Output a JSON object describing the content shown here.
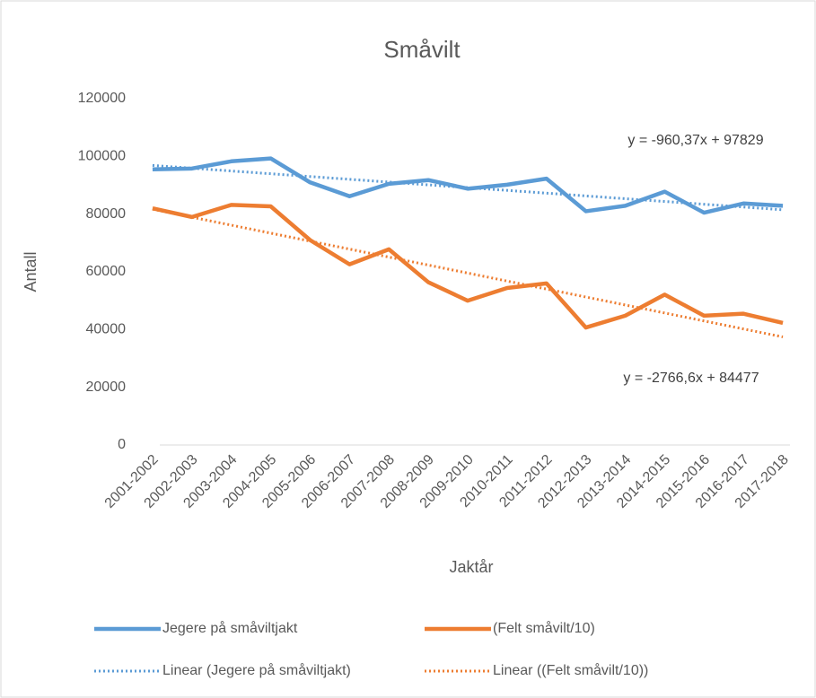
{
  "chart_data": {
    "type": "line",
    "title": "Småvilt",
    "x_label": "Jaktår",
    "y_label": "Antall",
    "categories": [
      "2001-2002",
      "2002-2003",
      "2003-2004",
      "2004-2005",
      "2005-2006",
      "2006-2007",
      "2007-2008",
      "2008-2009",
      "2009-2010",
      "2010-2011",
      "2011-2012",
      "2012-2013",
      "2013-2014",
      "2014-2015",
      "2015-2016",
      "2016-2017",
      "2017-2018"
    ],
    "series": [
      {
        "name": "Jegere på småviltjakt",
        "color": "#5b9bd5",
        "values": [
          95500,
          95800,
          98300,
          99300,
          91000,
          86200,
          90500,
          91800,
          88800,
          90200,
          92300,
          81000,
          82900,
          87800,
          80500,
          83700,
          82900
        ]
      },
      {
        "name": "(Felt småvilt/10)",
        "color": "#ed7d31",
        "values": [
          82000,
          79000,
          83200,
          82700,
          71000,
          62600,
          67800,
          56400,
          50000,
          54400,
          56000,
          40700,
          44800,
          52100,
          44800,
          45500,
          42300
        ]
      }
    ],
    "trendlines": [
      {
        "name": "Linear (Jegere på småviltjakt)",
        "color": "#5b9bd5",
        "slope": -960.37,
        "intercept": 97829,
        "label": "y = -960,37x + 97829"
      },
      {
        "name": "Linear ((Felt småvilt/10))",
        "color": "#ed7d31",
        "slope": -2766.6,
        "intercept": 84477,
        "label": "y = -2766,6x + 84477"
      }
    ],
    "ylim": [
      0,
      120000
    ],
    "yticks": [
      0,
      20000,
      40000,
      60000,
      80000,
      100000,
      120000
    ],
    "grid": false,
    "legend": "bottom"
  }
}
